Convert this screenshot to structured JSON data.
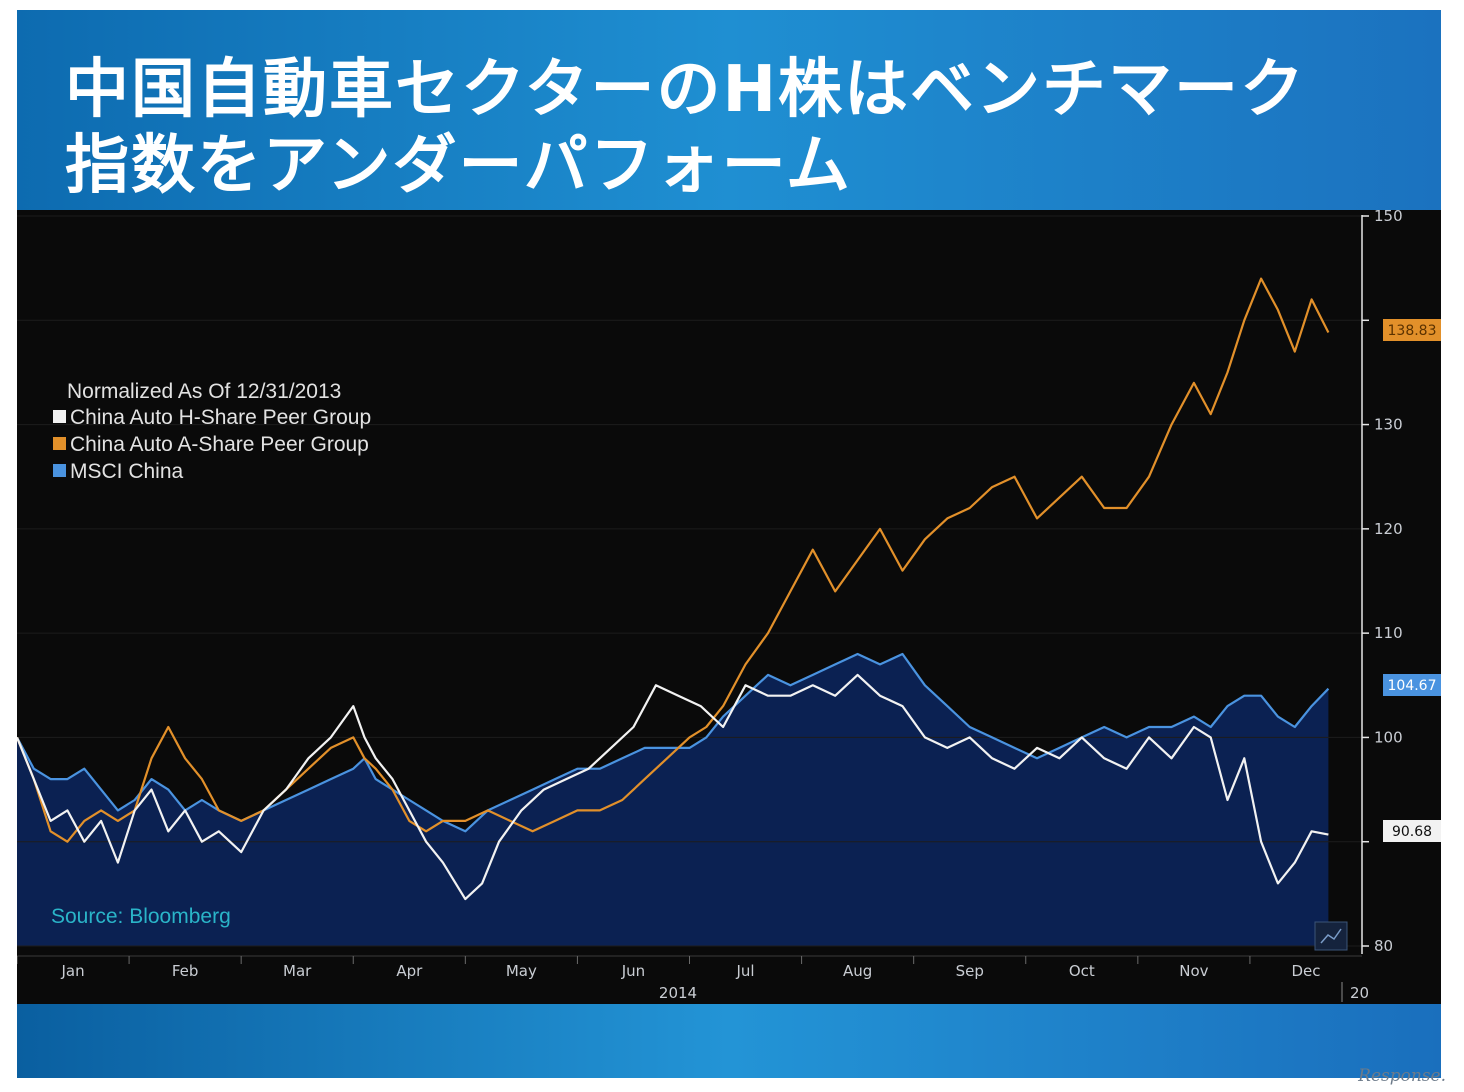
{
  "title": {
    "line1": "中国自動車セクターのH株はベンチマーク",
    "line2": "指数をアンダーパフォーム"
  },
  "colors": {
    "h_share": "#f2f2f2",
    "a_share": "#e2902a",
    "msci": "#4a93e0",
    "msci_fill": "#0c2356",
    "plot_bg": "#0a0a0a",
    "source": "#2ab4c8"
  },
  "watermark": "Response.",
  "chart_data": {
    "type": "line",
    "title": "Normalized As Of 12/31/2013",
    "xlabel": "2014",
    "next_year_label": "20",
    "ylim": [
      80,
      150
    ],
    "yticks": [
      80,
      90,
      100,
      110,
      120,
      130,
      140,
      150
    ],
    "ytick_labels": [
      "80",
      "",
      "100",
      "110",
      "120",
      "130",
      "",
      "150"
    ],
    "x_range": [
      0,
      12
    ],
    "months": [
      "Jan",
      "Feb",
      "Mar",
      "Apr",
      "May",
      "Jun",
      "Jul",
      "Aug",
      "Sep",
      "Oct",
      "Nov",
      "Dec"
    ],
    "legend_title": "Normalized As Of 12/31/2013",
    "legend": [
      "China Auto H-Share Peer Group",
      "China Auto A-Share Peer Group",
      "MSCI China"
    ],
    "source": "Source: Bloomberg",
    "end_labels": [
      "138.83",
      "104.67",
      "90.68"
    ],
    "series": [
      {
        "name": "China Auto H-Share Peer Group",
        "last": 90.68,
        "x": [
          0,
          0.15,
          0.3,
          0.45,
          0.6,
          0.75,
          0.9,
          1.05,
          1.2,
          1.35,
          1.5,
          1.65,
          1.8,
          2.0,
          2.2,
          2.4,
          2.6,
          2.8,
          3.0,
          3.1,
          3.2,
          3.35,
          3.5,
          3.65,
          3.8,
          4.0,
          4.15,
          4.3,
          4.5,
          4.7,
          4.9,
          5.1,
          5.3,
          5.5,
          5.7,
          5.9,
          6.1,
          6.3,
          6.5,
          6.7,
          6.9,
          7.1,
          7.3,
          7.5,
          7.7,
          7.9,
          8.1,
          8.3,
          8.5,
          8.7,
          8.9,
          9.1,
          9.3,
          9.5,
          9.7,
          9.9,
          10.1,
          10.3,
          10.5,
          10.65,
          10.8,
          10.95,
          11.1,
          11.25,
          11.4,
          11.55,
          11.7
        ],
        "values": [
          100,
          96,
          92,
          93,
          90,
          92,
          88,
          93,
          95,
          91,
          93,
          90,
          91,
          89,
          93,
          95,
          98,
          100,
          103,
          100,
          98,
          96,
          93,
          90,
          88,
          84.5,
          86,
          90,
          93,
          95,
          96,
          97,
          99,
          101,
          105,
          104,
          103,
          101,
          105,
          104,
          104,
          105,
          104,
          106,
          104,
          103,
          100,
          99,
          100,
          98,
          97,
          99,
          98,
          100,
          98,
          97,
          100,
          98,
          101,
          100,
          94,
          98,
          90,
          86,
          88,
          91,
          90.68
        ]
      },
      {
        "name": "China Auto A-Share Peer Group",
        "last": 138.83,
        "x": [
          0,
          0.15,
          0.3,
          0.45,
          0.6,
          0.75,
          0.9,
          1.05,
          1.2,
          1.35,
          1.5,
          1.65,
          1.8,
          2.0,
          2.2,
          2.4,
          2.6,
          2.8,
          3.0,
          3.1,
          3.2,
          3.35,
          3.5,
          3.65,
          3.8,
          4.0,
          4.2,
          4.4,
          4.6,
          4.8,
          5.0,
          5.2,
          5.4,
          5.6,
          5.8,
          6.0,
          6.15,
          6.3,
          6.5,
          6.7,
          6.9,
          7.1,
          7.3,
          7.5,
          7.7,
          7.9,
          8.1,
          8.3,
          8.5,
          8.7,
          8.9,
          9.1,
          9.3,
          9.5,
          9.7,
          9.9,
          10.1,
          10.3,
          10.5,
          10.65,
          10.8,
          10.95,
          11.1,
          11.25,
          11.4,
          11.55,
          11.7
        ],
        "values": [
          100,
          96,
          91,
          90,
          92,
          93,
          92,
          93,
          98,
          101,
          98,
          96,
          93,
          92,
          93,
          95,
          97,
          99,
          100,
          98,
          97,
          95,
          92,
          91,
          92,
          92,
          93,
          92,
          91,
          92,
          93,
          93,
          94,
          96,
          98,
          100,
          101,
          103,
          107,
          110,
          114,
          118,
          114,
          117,
          120,
          116,
          119,
          121,
          122,
          124,
          125,
          121,
          123,
          125,
          122,
          122,
          125,
          130,
          134,
          131,
          135,
          140,
          144,
          141,
          137,
          142,
          138.83
        ]
      },
      {
        "name": "MSCI China",
        "last": 104.67,
        "x": [
          0,
          0.15,
          0.3,
          0.45,
          0.6,
          0.75,
          0.9,
          1.05,
          1.2,
          1.35,
          1.5,
          1.65,
          1.8,
          2.0,
          2.2,
          2.4,
          2.6,
          2.8,
          3.0,
          3.1,
          3.2,
          3.35,
          3.5,
          3.65,
          3.8,
          4.0,
          4.2,
          4.4,
          4.6,
          4.8,
          5.0,
          5.2,
          5.4,
          5.6,
          5.8,
          6.0,
          6.15,
          6.3,
          6.5,
          6.7,
          6.9,
          7.1,
          7.3,
          7.5,
          7.7,
          7.9,
          8.1,
          8.3,
          8.5,
          8.7,
          8.9,
          9.1,
          9.3,
          9.5,
          9.7,
          9.9,
          10.1,
          10.3,
          10.5,
          10.65,
          10.8,
          10.95,
          11.1,
          11.25,
          11.4,
          11.55,
          11.7
        ],
        "values": [
          100,
          97,
          96,
          96,
          97,
          95,
          93,
          94,
          96,
          95,
          93,
          94,
          93,
          92,
          93,
          94,
          95,
          96,
          97,
          98,
          96,
          95,
          94,
          93,
          92,
          91,
          93,
          94,
          95,
          96,
          97,
          97,
          98,
          99,
          99,
          99,
          100,
          102,
          104,
          106,
          105,
          106,
          107,
          108,
          107,
          108,
          105,
          103,
          101,
          100,
          99,
          98,
          99,
          100,
          101,
          100,
          101,
          101,
          102,
          101,
          103,
          104,
          104,
          102,
          101,
          103,
          104.67
        ]
      }
    ]
  }
}
